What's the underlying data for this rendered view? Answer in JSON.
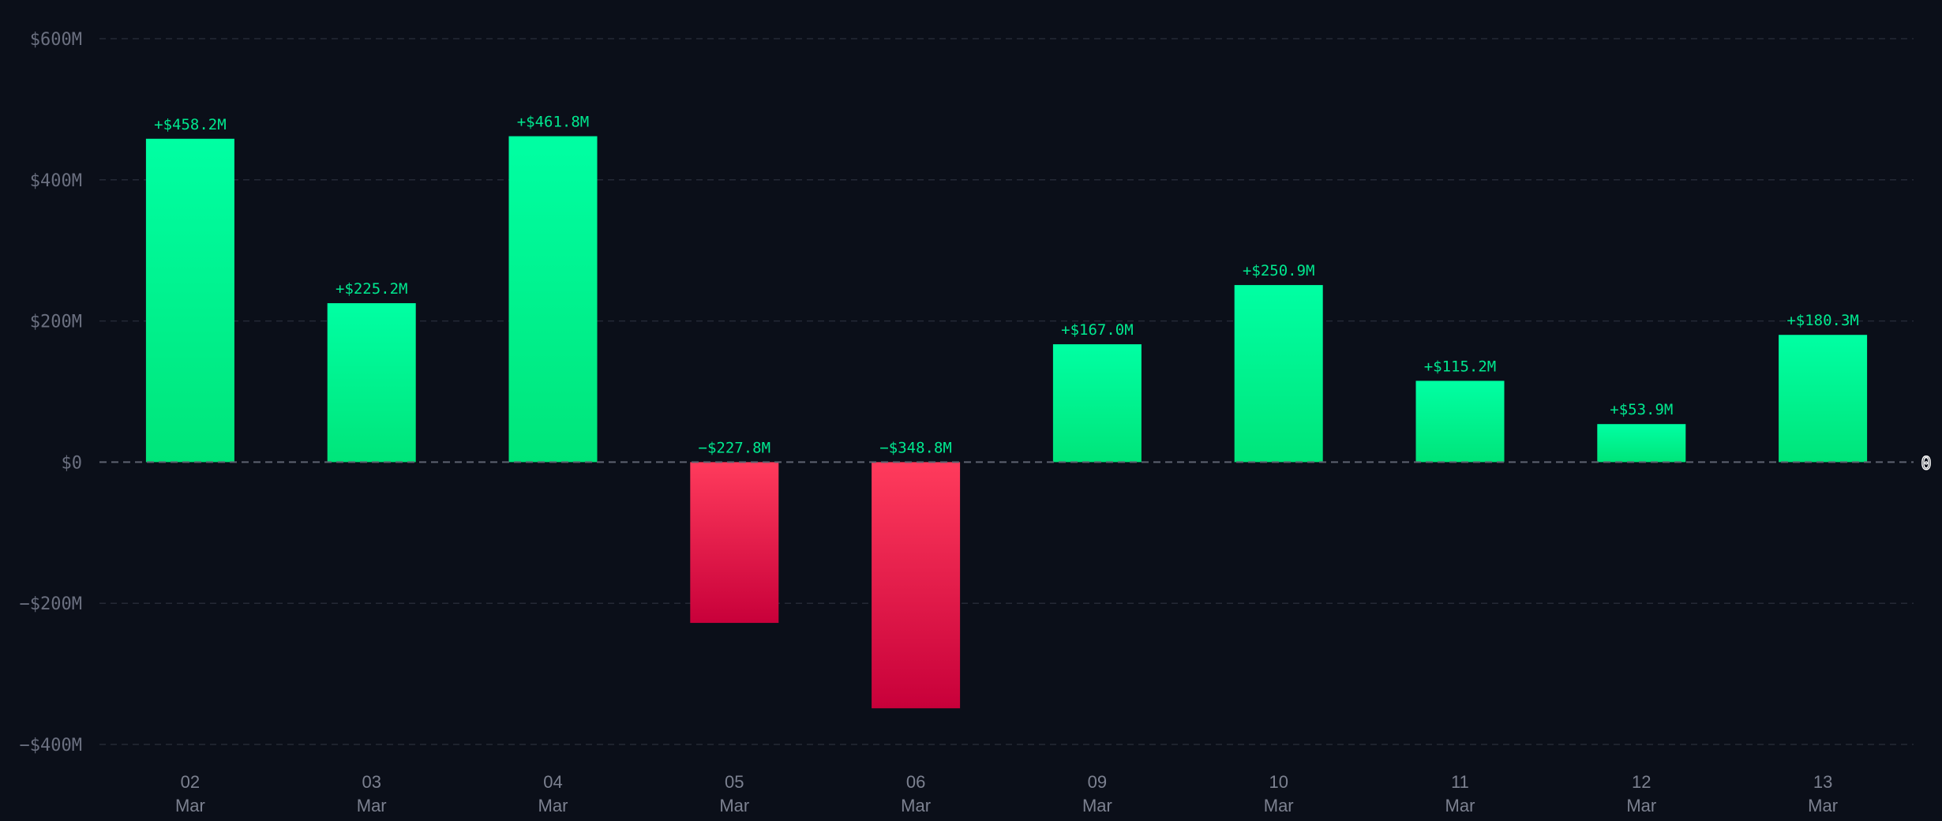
{
  "chart_data": {
    "type": "bar",
    "categories": [
      [
        "02",
        "Mar"
      ],
      [
        "03",
        "Mar"
      ],
      [
        "04",
        "Mar"
      ],
      [
        "05",
        "Mar"
      ],
      [
        "06",
        "Mar"
      ],
      [
        "09",
        "Mar"
      ],
      [
        "10",
        "Mar"
      ],
      [
        "11",
        "Mar"
      ],
      [
        "12",
        "Mar"
      ],
      [
        "13",
        "Mar"
      ]
    ],
    "values": [
      458.2,
      225.2,
      461.8,
      -227.8,
      -348.8,
      167.0,
      250.9,
      115.2,
      53.9,
      180.3
    ],
    "data_labels": [
      "+$458.2M",
      "+$225.2M",
      "+$461.8M",
      "−$227.8M",
      "−$348.8M",
      "+$167.0M",
      "+$250.9M",
      "+$115.2M",
      "+$53.9M",
      "+$180.3M"
    ],
    "unit": "$M",
    "ylim": [
      -400,
      600
    ],
    "yticks": [
      600,
      400,
      200,
      0,
      -200,
      -400
    ],
    "ytick_labels": [
      "$600M",
      "$400M",
      "$200M",
      "$0",
      "−$200M",
      "−$400M"
    ],
    "zero_marker_label": "0",
    "grid": true,
    "title": "",
    "xlabel": "",
    "ylabel": "",
    "colors": {
      "background": "#0b0f19",
      "positive_top": "#00ffa3",
      "positive_bottom": "#00e57a",
      "negative_top": "#ff3b5c",
      "negative_bottom": "#c8003a",
      "data_label": "#00e88f",
      "grid": "#252a36",
      "zero_line": "#5d6270"
    }
  }
}
